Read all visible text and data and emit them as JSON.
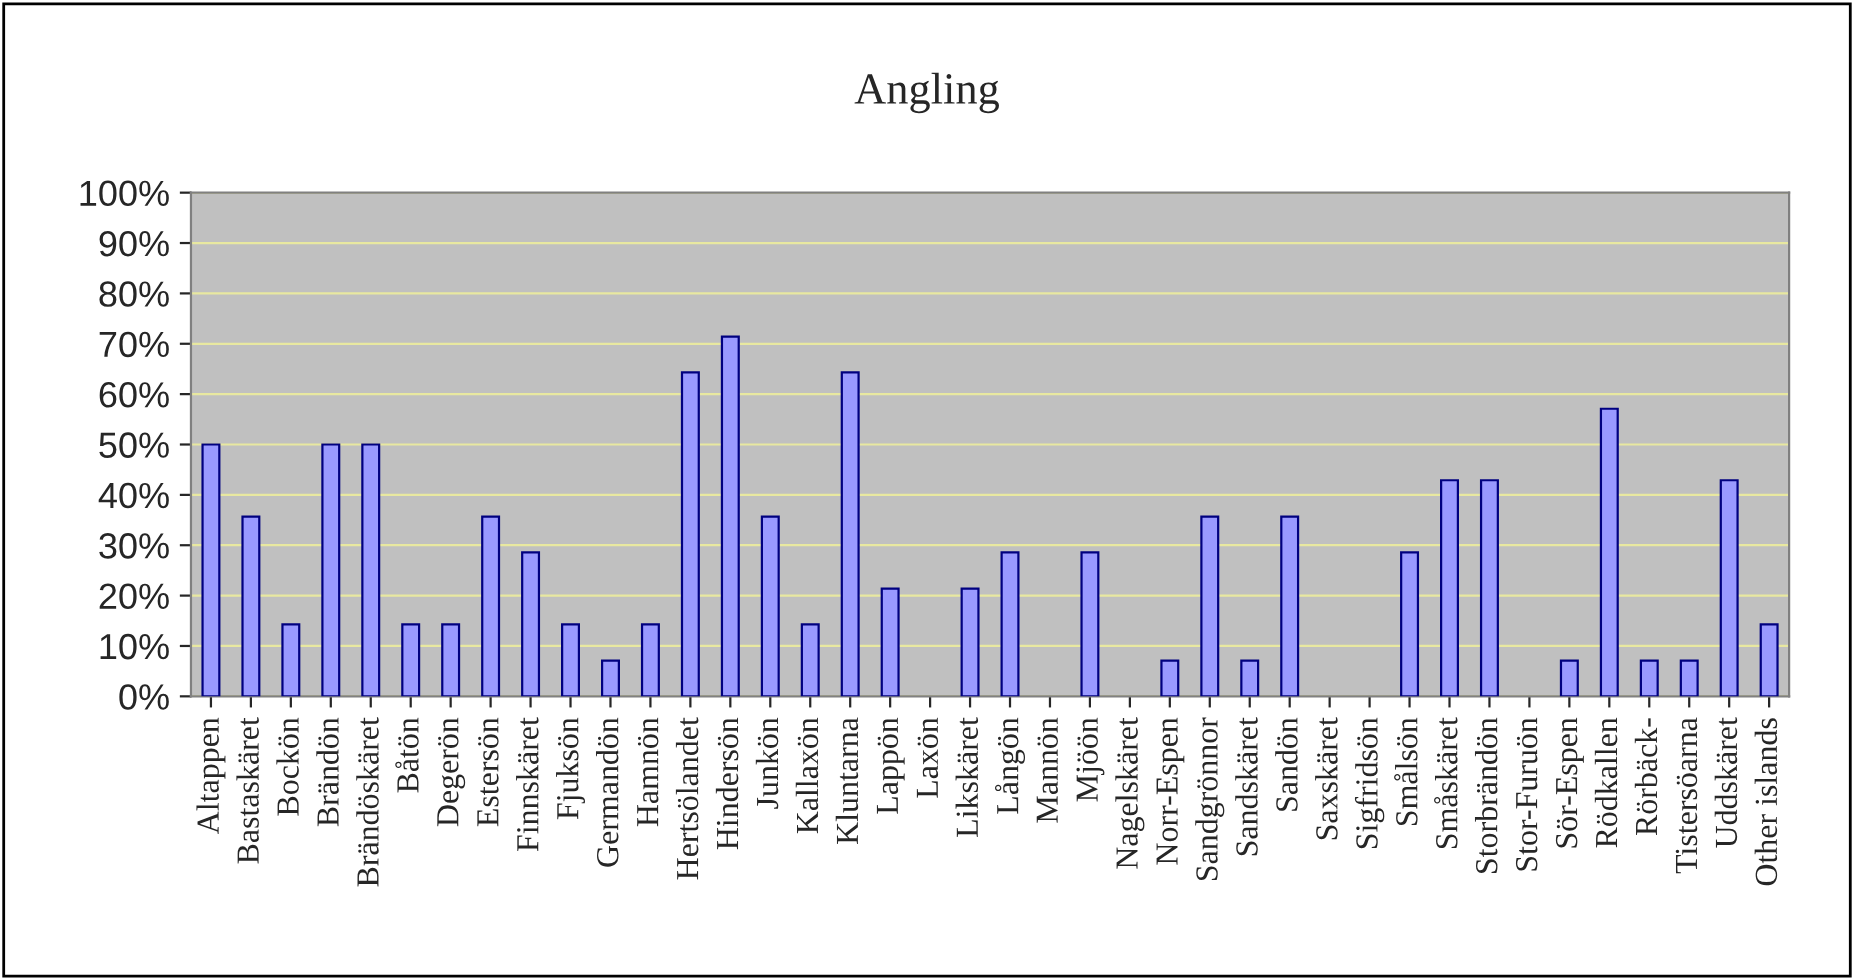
{
  "chart_data": {
    "type": "bar",
    "title": "Angling",
    "categories": [
      "Altappen",
      "Bastaskäret",
      "Bockön",
      "Brändön",
      "Brändöskäret",
      "Båtön",
      "Degerön",
      "Estersön",
      "Finnskäret",
      "Fjuksön",
      "Germandön",
      "Hamnön",
      "Hertsölandet",
      "Hindersön",
      "Junkön",
      "Kallaxön",
      "Kluntarna",
      "Lappön",
      "Laxön",
      "Likskäret",
      "Långön",
      "Mannön",
      "Mjöön",
      "Nagelskäret",
      "Norr-Espen",
      "Sandgrönnor",
      "Sandskäret",
      "Sandön",
      "Saxskäret",
      "Sigfridsön",
      "Smålsön",
      "Småskäret",
      "Storbrändön",
      "Stor-Furuön",
      "Sör-Espen",
      "Rödkallen",
      "Rörbäck-",
      "Tistersöarna",
      "Uddskäret",
      "Other islands"
    ],
    "values": [
      50,
      35.7,
      14.3,
      50,
      50,
      14.3,
      14.3,
      35.7,
      28.6,
      14.3,
      7.1,
      14.3,
      64.3,
      71.4,
      35.7,
      14.3,
      64.3,
      21.4,
      0,
      21.4,
      28.6,
      0,
      28.6,
      0,
      7.1,
      35.7,
      7.1,
      35.7,
      0,
      0,
      28.6,
      42.9,
      42.9,
      0,
      7.1,
      57.1,
      7.1,
      7.1,
      42.9,
      14.3
    ],
    "color": "#9999ff",
    "ylim": [
      0,
      100
    ],
    "yticks": [
      {
        "value": 0,
        "label": "0%"
      },
      {
        "value": 10,
        "label": "10%"
      },
      {
        "value": 20,
        "label": "20%"
      },
      {
        "value": 30,
        "label": "30%"
      },
      {
        "value": 40,
        "label": "40%"
      },
      {
        "value": 50,
        "label": "50%"
      },
      {
        "value": 60,
        "label": "60%"
      },
      {
        "value": 70,
        "label": "70%"
      },
      {
        "value": 80,
        "label": "80%"
      },
      {
        "value": 90,
        "label": "90%"
      },
      {
        "value": 100,
        "label": "100%"
      }
    ],
    "grid": "y"
  }
}
